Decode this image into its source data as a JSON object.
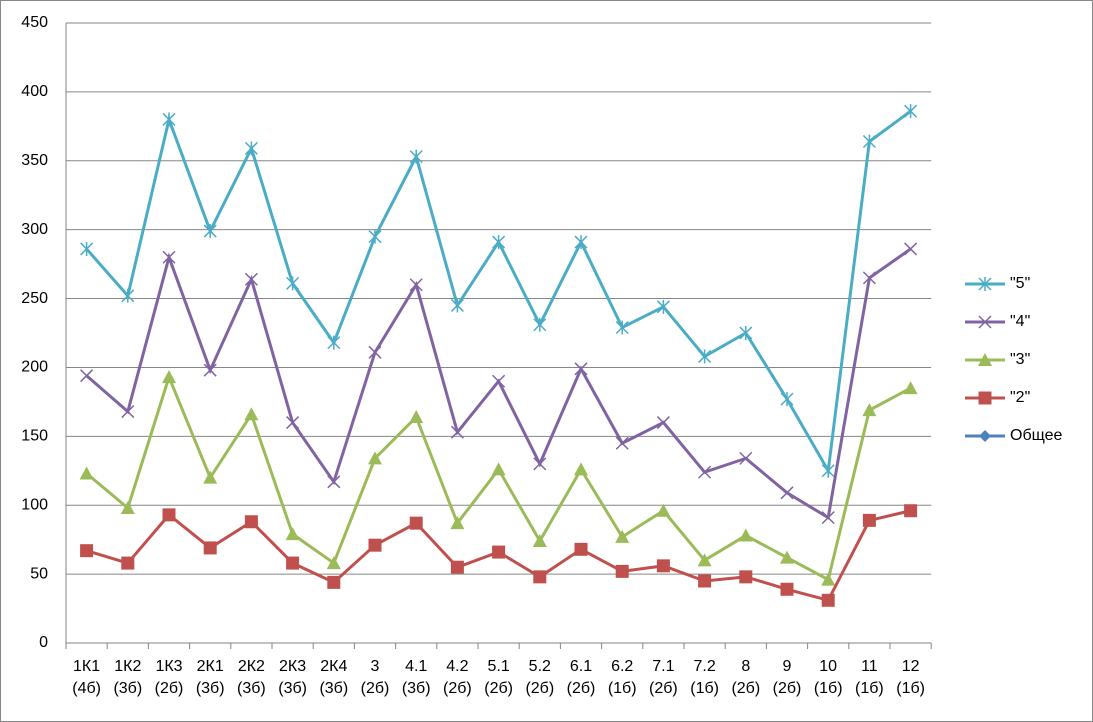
{
  "chart_data": {
    "type": "line",
    "categories": [
      "1К1\n(4б)",
      "1К2\n(3б)",
      "1К3\n(2б)",
      "2К1\n(3б)",
      "2К2\n(3б)",
      "2К3\n(3б)",
      "2К4\n(3б)",
      "3\n(2б)",
      "4.1\n(3б)",
      "4.2\n(2б)",
      "5.1\n(2б)",
      "5.2\n(2б)",
      "6.1\n(2б)",
      "6.2\n(1б)",
      "7.1\n(2б)",
      "7.2\n(1б)",
      "8\n(2б)",
      "9\n(2б)",
      "10\n(1б)",
      "11\n(1б)",
      "12\n(1б)"
    ],
    "series": [
      {
        "name": "\"5\"",
        "color": "#4bacc6",
        "marker": "star",
        "values": [
          286,
          252,
          380,
          299,
          359,
          261,
          218,
          295,
          353,
          245,
          291,
          231,
          291,
          229,
          244,
          208,
          225,
          177,
          125,
          364,
          386
        ]
      },
      {
        "name": "\"4\"",
        "color": "#8064a2",
        "marker": "x",
        "values": [
          194,
          168,
          280,
          198,
          264,
          160,
          117,
          211,
          260,
          153,
          190,
          130,
          199,
          145,
          160,
          124,
          134,
          109,
          91,
          265,
          286
        ]
      },
      {
        "name": "\"3\"",
        "color": "#9bbb59",
        "marker": "triangle",
        "values": [
          123,
          98,
          193,
          120,
          166,
          79,
          58,
          134,
          164,
          87,
          126,
          74,
          126,
          77,
          96,
          60,
          78,
          62,
          46,
          169,
          185
        ]
      },
      {
        "name": "\"2\"",
        "color": "#c0504d",
        "marker": "square",
        "values": [
          67,
          58,
          93,
          69,
          88,
          58,
          44,
          71,
          87,
          55,
          66,
          48,
          68,
          52,
          56,
          45,
          48,
          39,
          31,
          89,
          96
        ]
      },
      {
        "name": "Общее",
        "color": "#4f81bd",
        "marker": "diamond",
        "values": [
          null,
          null,
          null,
          null,
          null,
          null,
          null,
          null,
          null,
          null,
          null,
          null,
          null,
          null,
          null,
          null,
          null,
          null,
          null,
          null,
          null
        ]
      }
    ],
    "ylim": [
      0,
      450
    ],
    "yticks": [
      0,
      50,
      100,
      150,
      200,
      250,
      300,
      350,
      400,
      450
    ],
    "grid": true,
    "legend": "right"
  }
}
